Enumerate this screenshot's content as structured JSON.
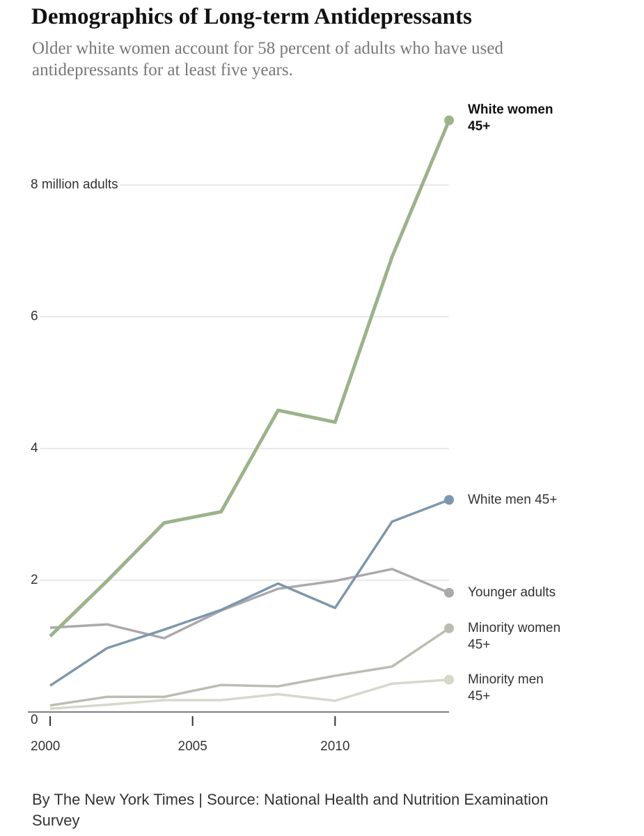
{
  "chart_data": {
    "type": "line",
    "title": "Demographics of Long-term Antidepressants",
    "subtitle": "Older white women account for 58 percent of adults who have used antidepressants for at least five years.",
    "source": "By The New York Times | Source: National Health and Nutrition Examination Survey",
    "x": [
      2000,
      2002,
      2004,
      2006,
      2008,
      2010,
      2012,
      2014
    ],
    "xlim": [
      2000,
      2014
    ],
    "xticks": [
      2000,
      2005,
      2010
    ],
    "ylim": [
      0,
      9.2
    ],
    "yticks": [
      0,
      2,
      4,
      6,
      {
        "value": 8,
        "label": "8 million adults"
      }
    ],
    "grid": true,
    "series": [
      {
        "name": "White women 45+",
        "color": "#9bb38a",
        "values": [
          1.15,
          1.99,
          2.87,
          3.04,
          4.58,
          4.4,
          6.91,
          8.98
        ]
      },
      {
        "name": "White men 45+",
        "color": "#7d97ad",
        "values": [
          0.4,
          0.97,
          1.25,
          1.55,
          1.95,
          1.58,
          2.89,
          3.22
        ]
      },
      {
        "name": "Younger adults",
        "color": "#ada8ac",
        "values": [
          1.28,
          1.33,
          1.12,
          1.54,
          1.87,
          1.99,
          2.17,
          1.81
        ]
      },
      {
        "name": "Minority women 45+",
        "color": "#bcbdb2",
        "values": [
          0.1,
          0.23,
          0.23,
          0.41,
          0.39,
          0.55,
          0.69,
          1.27
        ]
      },
      {
        "name": "Minority men 45+",
        "color": "#d5d8cb",
        "values": [
          0.05,
          0.11,
          0.18,
          0.18,
          0.27,
          0.17,
          0.43,
          0.49
        ]
      }
    ]
  }
}
